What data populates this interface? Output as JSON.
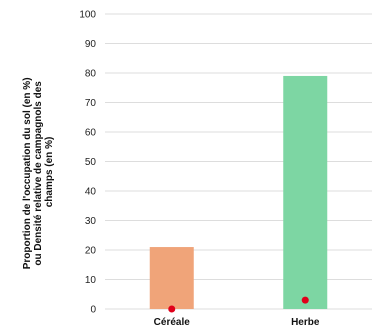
{
  "chart_data": {
    "type": "bar",
    "categories": [
      "Céréale",
      "Herbe"
    ],
    "series": [
      {
        "values": [
          21,
          79
        ],
        "colors": [
          "#f0a479",
          "#7dd6a3"
        ]
      },
      {
        "type": "scatter",
        "values": [
          0,
          3
        ],
        "color": "#e0001a"
      }
    ],
    "ylabel_lines": [
      "Proportion de l'occupation du sol (en %)",
      "ou Densité relative de campagnols des",
      "champs (en %)"
    ],
    "ylim": [
      0,
      100
    ],
    "yticks": [
      0,
      10,
      20,
      30,
      40,
      50,
      60,
      70,
      80,
      90,
      100
    ],
    "grid": true
  }
}
